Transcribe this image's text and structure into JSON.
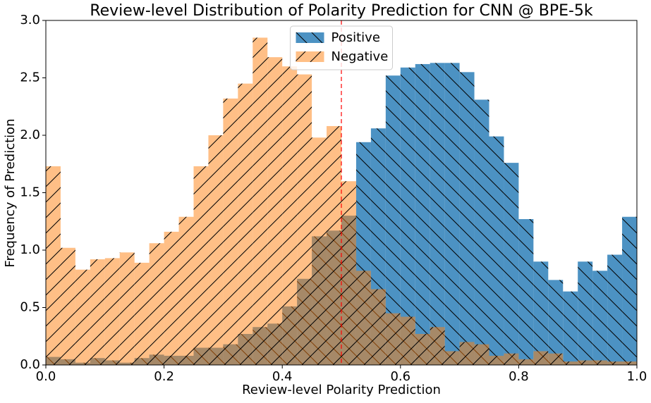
{
  "chart_data": {
    "type": "histogram",
    "title": "Review-level Distribution of Polarity Prediction for CNN @ BPE-5k",
    "x_label": "Review-level Polarity Prediction",
    "y_label": "Frequency of Prediction",
    "bins": [
      0,
      0.025,
      0.05,
      0.075,
      0.1,
      0.125,
      0.15,
      0.175,
      0.2,
      0.225,
      0.25,
      0.275,
      0.3,
      0.325,
      0.35,
      0.375,
      0.4,
      0.425,
      0.45,
      0.475,
      0.5,
      0.525,
      0.55,
      0.575,
      0.6,
      0.625,
      0.65,
      0.675,
      0.7,
      0.725,
      0.75,
      0.775,
      0.8,
      0.825,
      0.85,
      0.875,
      0.9,
      0.925,
      0.95,
      0.975,
      1
    ],
    "series": [
      {
        "name": "Positive",
        "color": "#1f77b4",
        "opacity": 0.8,
        "hatch": "backslash",
        "values": [
          0.07,
          0.05,
          0.02,
          0.06,
          0.04,
          0.02,
          0.06,
          0.09,
          0.08,
          0.08,
          0.15,
          0.15,
          0.18,
          0.27,
          0.33,
          0.36,
          0.51,
          0.75,
          1.12,
          1.17,
          1.3,
          1.94,
          2.06,
          2.52,
          2.59,
          2.62,
          2.63,
          2.63,
          2.55,
          2.31,
          1.99,
          1.76,
          1.27,
          0.9,
          0.74,
          0.64,
          0.9,
          0.82,
          0.96,
          1.29
        ]
      },
      {
        "name": "Negative",
        "color": "#ff7f0e",
        "opacity": 0.5,
        "hatch": "slash",
        "values": [
          1.73,
          1.02,
          0.83,
          0.92,
          0.93,
          0.98,
          0.89,
          1.06,
          1.16,
          1.29,
          1.73,
          2.0,
          2.32,
          2.45,
          2.85,
          2.68,
          2.6,
          2.53,
          1.98,
          2.08,
          1.6,
          0.82,
          0.66,
          0.45,
          0.42,
          0.27,
          0.33,
          0.12,
          0.2,
          0.18,
          0.08,
          0.1,
          0.05,
          0.12,
          0.1,
          0.03,
          0.04,
          0.04,
          0.03,
          0.03
        ]
      }
    ],
    "vline": {
      "x": 0.5,
      "color": "#ff0000"
    },
    "xlim": [
      0,
      1
    ],
    "xticks": [
      {
        "value": 0,
        "label": "0.0"
      },
      0.2,
      0.4,
      0.6,
      0.8,
      {
        "value": 1,
        "label": "1.0"
      }
    ],
    "ylim": [
      0,
      3
    ],
    "yticks": [
      {
        "value": 0,
        "label": "0.0"
      },
      0.5,
      {
        "value": 1,
        "label": "1.0"
      },
      1.5,
      {
        "value": 2,
        "label": "2.0"
      },
      2.5,
      {
        "value": 3,
        "label": "3.0"
      }
    ],
    "legend": "upper center"
  }
}
